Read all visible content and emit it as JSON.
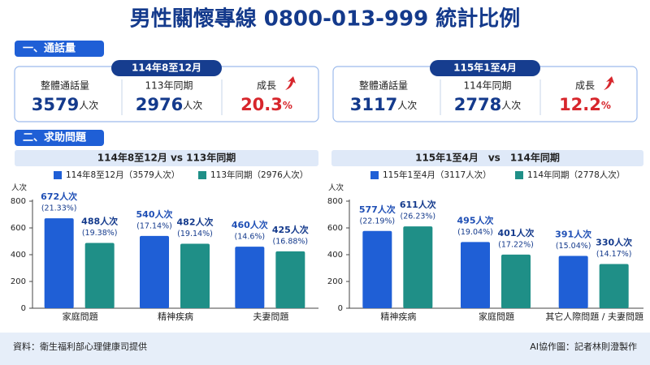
{
  "title": "男性關懷專線 0800-013-999 統計比例",
  "sections": [
    "一、通話量",
    "二、求助問題"
  ],
  "cards": [
    {
      "period": "114年8至12月",
      "items": [
        {
          "label": "整體通話量",
          "value": 3579,
          "unit": "人次"
        },
        {
          "label": "113年同期",
          "value": 2976,
          "unit": "人次"
        },
        {
          "label": "成長",
          "value": 20.3,
          "unit": "%"
        }
      ]
    },
    {
      "period": "115年1至4月",
      "items": [
        {
          "label": "整體通話量",
          "value": 3117,
          "unit": "人次"
        },
        {
          "label": "114年同期",
          "value": 2778,
          "unit": "人次"
        },
        {
          "label": "成長",
          "value": 12.2,
          "unit": "%"
        }
      ]
    }
  ],
  "chart_data": [
    {
      "type": "bar",
      "title": "114年8至12月 vs 113年同期",
      "y_label": "人次",
      "categories": [
        "家庭問題",
        "精神疾病",
        "夫妻問題"
      ],
      "ylim": [
        0,
        800
      ],
      "yticks": [
        0,
        200,
        400,
        600,
        800
      ],
      "series": [
        {
          "name": "114年8至12月（3579人次）",
          "color": "#1f5fd6",
          "values": [
            672,
            540,
            460
          ],
          "value_labels": [
            "672人次",
            "540人次",
            "460人次"
          ],
          "share_labels": [
            "(21.33%)",
            "(17.14%)",
            "(14.6%)"
          ]
        },
        {
          "name": "113年同期（2976人次）",
          "color": "#1f8f87",
          "values": [
            488,
            482,
            425
          ],
          "value_labels": [
            "488人次",
            "482人次",
            "425人次"
          ],
          "share_labels": [
            "(19.38%)",
            "(19.14%)",
            "(16.88%)"
          ]
        }
      ]
    },
    {
      "type": "bar",
      "title": "115年1至4月　vs　114年同期",
      "y_label": "人次",
      "categories": [
        "精神疾病",
        "家庭問題",
        "其它人際問題 / 夫妻問題"
      ],
      "ylim": [
        0,
        800
      ],
      "yticks": [
        0,
        200,
        400,
        600,
        800
      ],
      "series": [
        {
          "name": "115年1至4月（3117人次）",
          "color": "#1f5fd6",
          "values": [
            577,
            495,
            391
          ],
          "value_labels": [
            "577人次",
            "495人次",
            "391人次"
          ],
          "share_labels": [
            "(22.19%)",
            "(19.04%)",
            "(15.04%)"
          ]
        },
        {
          "name": "114年同期（2778人次）",
          "color": "#1f8f87",
          "values": [
            611,
            401,
            330
          ],
          "value_labels": [
            "611人次",
            "401人次",
            "330人次"
          ],
          "share_labels": [
            "(26.23%)",
            "(17.22%)",
            "(14.17%)"
          ]
        }
      ]
    }
  ],
  "footer": {
    "source": "資料：衛生福利部心理健康司提供",
    "credit": "AI協作圖：記者林則澄製作"
  }
}
